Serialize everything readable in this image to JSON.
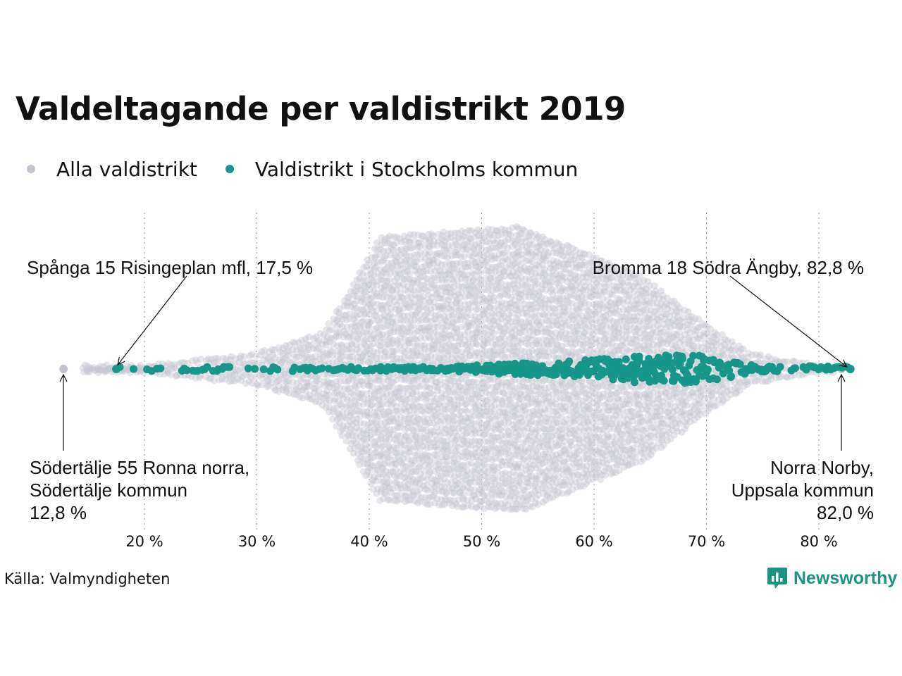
{
  "chart_data": {
    "type": "scatter",
    "subtype": "beeswarm",
    "title": "Valdeltagande per valdistrikt 2019",
    "series": [
      {
        "name": "Alla valdistrikt",
        "color": "#c3c3cf",
        "range": [
          12.8,
          82.8
        ]
      },
      {
        "name": "Valdistrikt i Stockholms kommun",
        "color": "#16978a",
        "range": [
          17.5,
          82.8
        ]
      }
    ],
    "x_ticks": [
      {
        "value": 20,
        "label": "20 %"
      },
      {
        "value": 30,
        "label": "30 %"
      },
      {
        "value": 40,
        "label": "40 %"
      },
      {
        "value": 50,
        "label": "50 %"
      },
      {
        "value": 60,
        "label": "60 %"
      },
      {
        "value": 70,
        "label": "70 %"
      },
      {
        "value": 80,
        "label": "80 %"
      }
    ],
    "xlim": [
      12,
      84
    ],
    "grid": "vertical dotted",
    "legend_position": "top-left",
    "annotations": [
      {
        "lines": [
          "Spånga 15 Risingeplan mfl, 17,5 %"
        ],
        "x": 17.5,
        "series": "Valdistrikt i Stockholms kommun"
      },
      {
        "lines": [
          "Bromma 18 Södra Ängby, 82,8 %"
        ],
        "x": 82.8,
        "series": "Valdistrikt i Stockholms kommun"
      },
      {
        "lines": [
          "Södertälje 55 Ronna norra,",
          "Södertälje kommun",
          "12,8 %"
        ],
        "x": 12.8,
        "series": "Alla valdistrikt"
      },
      {
        "lines": [
          "Norra Norby,",
          "Uppsala kommun",
          "82,0 %"
        ],
        "x": 82.0,
        "series": "Alla valdistrikt"
      }
    ]
  },
  "source": "Källa: Valmyndigheten",
  "brand": {
    "name": "Newsworthy",
    "icon": "newsworthy-logo-icon",
    "color": "#1a9481"
  }
}
